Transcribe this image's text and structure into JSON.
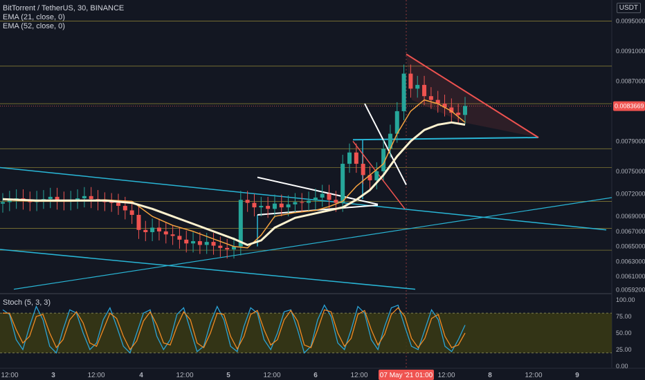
{
  "legend": {
    "symbol": "BitTorrent / TetherUS, 30, BINANCE",
    "ema21": "EMA (21, close, 0)",
    "ema52": "EMA (52, close, 0)"
  },
  "stoch_label": "Stoch (5, 3, 3)",
  "currency": "USDT",
  "current_price_label": "0.0083669",
  "crosshair_time_label": "07 May '21  01:00",
  "colors": {
    "background": "#131722",
    "up": "#26a69a",
    "down": "#ef5350",
    "ema21": "#f7a440",
    "ema52": "#fff3d0",
    "channel": "#29b6d6",
    "triangle": "#ef5350",
    "hline": "#a89a3a",
    "stoch_k": "#2aa3d6",
    "stoch_d": "#f08a24",
    "stoch_band": "#3a3a14"
  },
  "chart_data": [
    {
      "type": "candlestick",
      "title": "BitTorrent / TetherUS, 30, BINANCE",
      "y_axis_ticks": [
        "0.0095000",
        "0.0091000",
        "0.0087000",
        "0.0083669",
        "0.0079000",
        "0.0075000",
        "0.0072000",
        "0.0069000",
        "0.0067000",
        "0.0065000",
        "0.0063000",
        "0.0061000",
        "0.0059200"
      ],
      "x_axis_ticks": [
        "12:00",
        "3",
        "12:00",
        "4",
        "12:00",
        "5",
        "12:00",
        "6",
        "12:00",
        "07 May '21  01:00",
        "12:00",
        "8",
        "12:00",
        "9"
      ],
      "ylim": [
        0.00589,
        0.00978
      ],
      "horizontal_levels": [
        0.0095,
        0.0089,
        0.0084,
        0.0078,
        0.00755,
        0.0071,
        0.00674,
        0.00645
      ],
      "current_price": 0.0083669,
      "series": [
        {
          "name": "EMA (21, close, 0)",
          "x": [
            0,
            5,
            10,
            15,
            19,
            22,
            25,
            28,
            31,
            34,
            36,
            38,
            40,
            43,
            46,
            48,
            50,
            52,
            54,
            56,
            58,
            60,
            62,
            64,
            66,
            68
          ],
          "values": [
            0.00712,
            0.0071,
            0.0071,
            0.00712,
            0.0071,
            0.0069,
            0.00678,
            0.0067,
            0.0066,
            0.0065,
            0.00648,
            0.00665,
            0.0069,
            0.00695,
            0.00698,
            0.00703,
            0.0071,
            0.0073,
            0.00745,
            0.0076,
            0.008,
            0.0083,
            0.00845,
            0.0084,
            0.0083,
            0.00815
          ]
        },
        {
          "name": "EMA (52, close, 0)",
          "x": [
            0,
            5,
            10,
            15,
            19,
            22,
            25,
            28,
            31,
            34,
            36,
            38,
            40,
            43,
            46,
            48,
            50,
            52,
            54,
            56,
            58,
            60,
            62,
            64,
            66,
            68
          ],
          "values": [
            0.00713,
            0.00711,
            0.00711,
            0.00711,
            0.00708,
            0.007,
            0.0069,
            0.0068,
            0.0067,
            0.0066,
            0.00652,
            0.00658,
            0.00675,
            0.00688,
            0.00694,
            0.00698,
            0.00702,
            0.00712,
            0.00725,
            0.00745,
            0.0077,
            0.0079,
            0.00805,
            0.00812,
            0.00815,
            0.00812
          ]
        }
      ],
      "candles_approx_close": [
        0.00709,
        0.00712,
        0.00714,
        0.00711,
        0.00709,
        0.00712,
        0.00713,
        0.00716,
        0.00711,
        0.0071,
        0.00712,
        0.00714,
        0.00717,
        0.00713,
        0.0071,
        0.00709,
        0.00708,
        0.00704,
        0.00698,
        0.00692,
        0.00672,
        0.00669,
        0.00675,
        0.0067,
        0.00666,
        0.00664,
        0.00659,
        0.00654,
        0.00657,
        0.00652,
        0.00656,
        0.00651,
        0.00648,
        0.00646,
        0.0065,
        0.00712,
        0.00708,
        0.00702,
        0.00704,
        0.007,
        0.00707,
        0.00702,
        0.00706,
        0.00709,
        0.00708,
        0.00711,
        0.00715,
        0.0072,
        0.00712,
        0.00708,
        0.0076,
        0.00775,
        0.0076,
        0.00745,
        0.00738,
        0.0075,
        0.0078,
        0.008,
        0.0083,
        0.0088,
        0.0086,
        0.00865,
        0.0085,
        0.00845,
        0.0084,
        0.00835,
        0.00828,
        0.00825,
        0.00837
      ]
    },
    {
      "type": "line",
      "title": "Stoch (5, 3, 3)",
      "y_axis_ticks": [
        "100.00",
        "75.00",
        "50.00",
        "25.00",
        "0.00"
      ],
      "ylim": [
        0,
        100
      ],
      "band": [
        20,
        80
      ],
      "series": [
        {
          "name": "%K",
          "values": [
            85,
            78,
            40,
            25,
            60,
            90,
            70,
            30,
            20,
            55,
            85,
            80,
            50,
            25,
            35,
            70,
            88,
            60,
            30,
            20,
            50,
            80,
            85,
            45,
            25,
            40,
            78,
            88,
            55,
            22,
            30,
            65,
            90,
            70,
            30,
            22,
            60,
            88,
            80,
            40,
            25,
            50,
            82,
            85,
            55,
            20,
            30,
            70,
            92,
            75,
            35,
            25,
            55,
            90,
            80,
            40,
            25,
            60,
            88,
            92,
            60,
            30,
            25,
            55,
            85,
            70,
            30,
            22,
            40,
            62
          ]
        },
        {
          "name": "%D",
          "values": [
            80,
            80,
            55,
            35,
            45,
            75,
            78,
            50,
            28,
            40,
            70,
            82,
            65,
            35,
            30,
            55,
            80,
            72,
            45,
            25,
            38,
            68,
            82,
            62,
            35,
            32,
            60,
            82,
            70,
            35,
            28,
            50,
            80,
            78,
            45,
            26,
            45,
            78,
            84,
            55,
            32,
            40,
            70,
            84,
            68,
            32,
            28,
            55,
            85,
            82,
            50,
            30,
            42,
            78,
            84,
            55,
            32,
            48,
            78,
            88,
            75,
            42,
            28,
            42,
            72,
            78,
            45,
            28,
            32,
            50
          ]
        }
      ]
    }
  ]
}
